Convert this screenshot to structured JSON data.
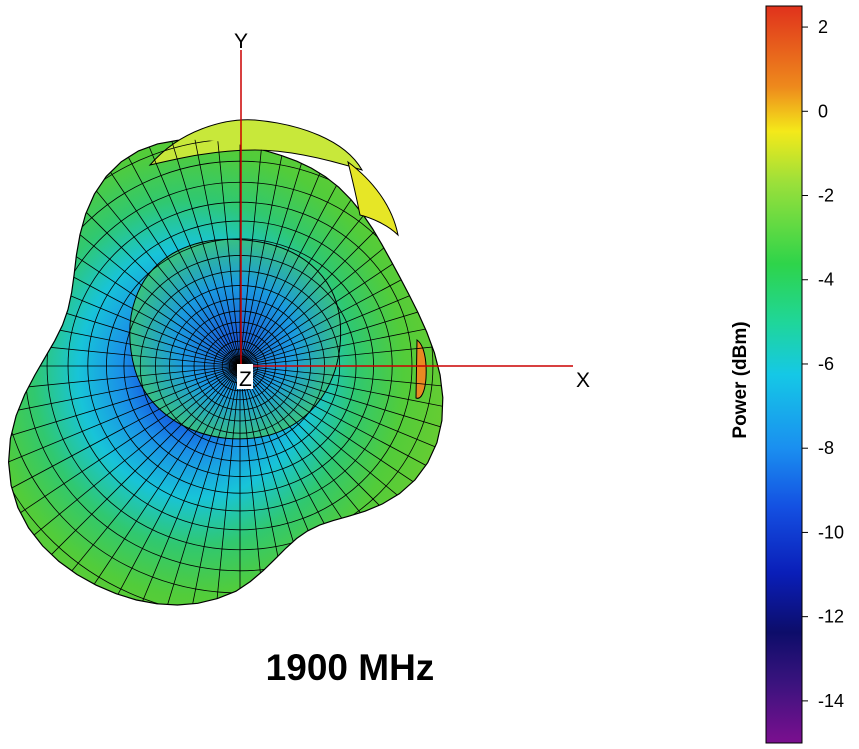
{
  "title": "1900 MHz",
  "axes": {
    "x": "X",
    "y": "Y",
    "z": "Z"
  },
  "colorbar": {
    "label": "Power  (dBm)",
    "ticks": [
      "2",
      "0",
      "-2",
      "-4",
      "-6",
      "-8",
      "-10",
      "-12",
      "-14"
    ]
  },
  "chart_data": {
    "type": "heatmap",
    "title": "1900 MHz",
    "xlabel": "X",
    "ylabel": "Y",
    "zlabel": "Z",
    "colorbar_label": "Power  (dBm)",
    "color_range": [
      -15,
      2.5
    ],
    "colorbar_ticks": [
      2,
      0,
      -2,
      -4,
      -6,
      -8,
      -10,
      -12,
      -14
    ],
    "colors": [
      "#7b0f8f",
      "#1a0e7a",
      "#0e27ba",
      "#1565e8",
      "#15c8e6",
      "#3ed64a",
      "#8ee03a",
      "#f4e91a",
      "#ee7b1c",
      "#e0321c"
    ]
  }
}
